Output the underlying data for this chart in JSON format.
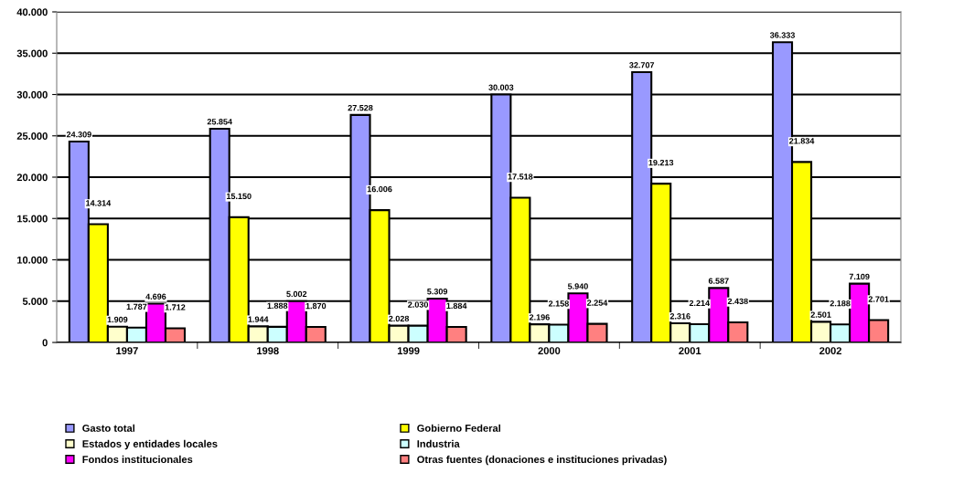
{
  "chart_data": {
    "type": "bar",
    "categories": [
      "1997",
      "1998",
      "1999",
      "2000",
      "2001",
      "2002"
    ],
    "series": [
      {
        "name": "Gasto total",
        "color": "#9999ff",
        "values": [
          24309,
          25854,
          27528,
          30003,
          32707,
          36333
        ],
        "value_labels": [
          "24.309",
          "25.854",
          "27.528",
          "30.003",
          "32.707",
          "36.333"
        ]
      },
      {
        "name": "Gobierno Federal",
        "color": "#ffff00",
        "values": [
          14314,
          15150,
          16006,
          17518,
          19213,
          21834
        ],
        "value_labels": [
          "14.314",
          "15.150",
          "16.006",
          "17.518",
          "19.213",
          "21.834"
        ]
      },
      {
        "name": "Estados y entidades locales",
        "color": "#ffffcc",
        "values": [
          1909,
          1944,
          2028,
          2196,
          2316,
          2501
        ],
        "value_labels": [
          "1.909",
          "1.944",
          "2.028",
          "2.196",
          "2.316",
          "2.501"
        ]
      },
      {
        "name": "Industria",
        "color": "#ccffff",
        "values": [
          1787,
          1888,
          2030,
          2158,
          2214,
          2188
        ],
        "value_labels": [
          "1.787",
          "1.888",
          "2.030",
          "2.158",
          "2.214",
          "2.188"
        ]
      },
      {
        "name": "Fondos institucionales",
        "color": "#ff00ff",
        "values": [
          4696,
          5002,
          5309,
          5940,
          6587,
          7109
        ],
        "value_labels": [
          "4.696",
          "5.002",
          "5.309",
          "5.940",
          "6.587",
          "7.109"
        ]
      },
      {
        "name": "Otras fuentes (donaciones e instituciones privadas)",
        "color": "#ff8080",
        "values": [
          1712,
          1870,
          1884,
          2254,
          2438,
          2701
        ],
        "value_labels": [
          "1.712",
          "1.870",
          "1.884",
          "2.254",
          "2.438",
          "2.701"
        ]
      }
    ],
    "ylim": [
      0,
      40000
    ],
    "yticks": [
      {
        "value": 0,
        "label": "0"
      },
      {
        "value": 5000,
        "label": "5.000"
      },
      {
        "value": 10000,
        "label": "10.000"
      },
      {
        "value": 15000,
        "label": "15.000"
      },
      {
        "value": 20000,
        "label": "20.000"
      },
      {
        "value": 25000,
        "label": "25.000"
      },
      {
        "value": 30000,
        "label": "30.000"
      },
      {
        "value": 35000,
        "label": "35.000"
      },
      {
        "value": 40000,
        "label": "40.000"
      }
    ],
    "grid": "y",
    "legend": "bottom"
  }
}
